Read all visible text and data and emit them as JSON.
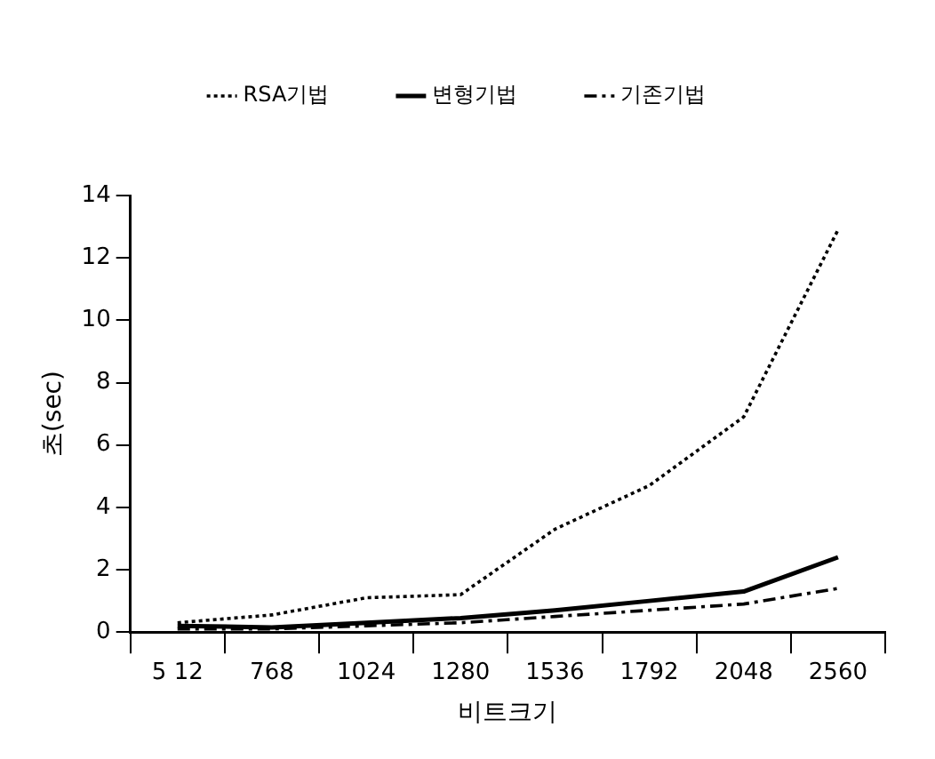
{
  "chart_data": {
    "type": "line",
    "xlabel": "비트크기",
    "ylabel": "초(sec)",
    "categories": [
      "5 12",
      "768",
      "1024",
      "1280",
      "1536",
      "1792",
      "2048",
      "2560"
    ],
    "series": [
      {
        "name": "RSA기법",
        "color": "#000000",
        "line_style": "dotted",
        "values": [
          0.3,
          0.55,
          1.1,
          1.2,
          3.3,
          4.7,
          6.9,
          12.9
        ]
      },
      {
        "name": "변형기법",
        "color": "#000000",
        "line_style": "solid",
        "values": [
          0.2,
          0.15,
          0.3,
          0.45,
          0.7,
          1.0,
          1.3,
          2.4
        ]
      },
      {
        "name": "기존기법",
        "color": "#000000",
        "line_style": "dashed",
        "values": [
          0.1,
          0.1,
          0.2,
          0.3,
          0.5,
          0.7,
          0.9,
          1.4
        ]
      }
    ],
    "ylim": [
      0,
      14
    ],
    "yticks": [
      0,
      2,
      4,
      6,
      8,
      10,
      12,
      14
    ],
    "grid": false,
    "legend": "top",
    "marker": "none"
  }
}
